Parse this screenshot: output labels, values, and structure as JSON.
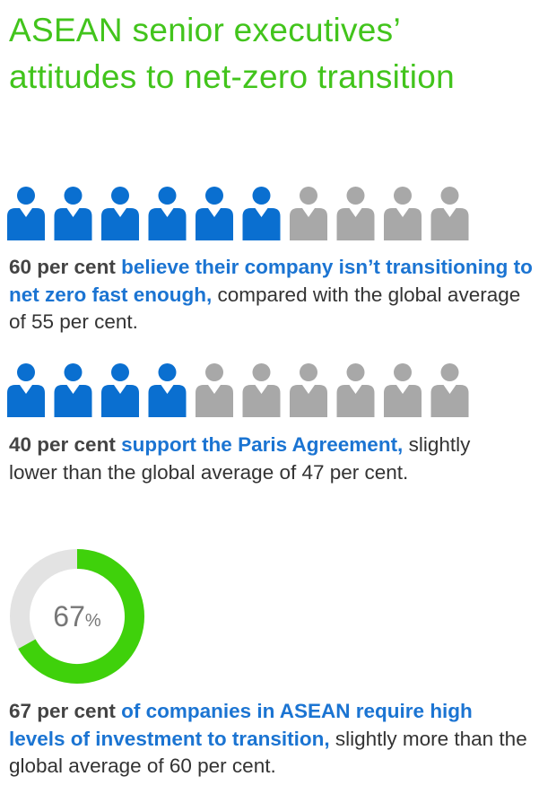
{
  "title": "ASEAN senior executives’ attitudes to net-zero transition",
  "stats": [
    {
      "value": 60,
      "lead": "60 per cent",
      "highlight": "believe their company isn’t transitioning to net zero fast enough,",
      "rest": "compared with the global average of 55 per cent."
    },
    {
      "value": 40,
      "lead": "40 per cent",
      "highlight": "support the Paris Agreement,",
      "rest": "slightly lower than the global average of 47 per cent."
    },
    {
      "value": 67,
      "donut_number": "67",
      "donut_unit": "%",
      "lead": "67 per cent",
      "highlight": "of companies in ASEAN require high levels of investment to transition,",
      "rest": "slightly more than the global average of 60 per cent."
    }
  ]
}
